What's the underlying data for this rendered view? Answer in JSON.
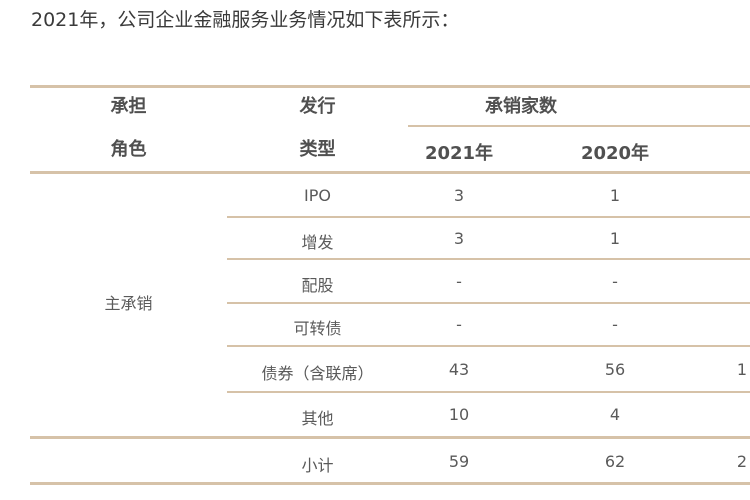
{
  "intro_text": "2021年，公司企业金融服务业务情况如下表所示：",
  "table": {
    "headers": {
      "role_line1": "承担",
      "role_line2": "角色",
      "type_line1": "发行",
      "type_line2": "类型",
      "group": "承销家数",
      "years": [
        "2021年",
        "2020年"
      ]
    },
    "role_label": "主承销",
    "rows": [
      {
        "type": "IPO",
        "y2021": "3",
        "y2020": "1",
        "extra": ""
      },
      {
        "type": "增发",
        "y2021": "3",
        "y2020": "1",
        "extra": ""
      },
      {
        "type": "配股",
        "y2021": "-",
        "y2020": "-",
        "extra": ""
      },
      {
        "type": "可转债",
        "y2021": "-",
        "y2020": "-",
        "extra": ""
      },
      {
        "type": "债券（含联席）",
        "y2021": "43",
        "y2020": "56",
        "extra": "1"
      },
      {
        "type": "其他",
        "y2021": "10",
        "y2020": "4",
        "extra": ""
      }
    ],
    "subtotal": {
      "type": "小计",
      "y2021": "59",
      "y2020": "62",
      "extra": "2"
    }
  }
}
